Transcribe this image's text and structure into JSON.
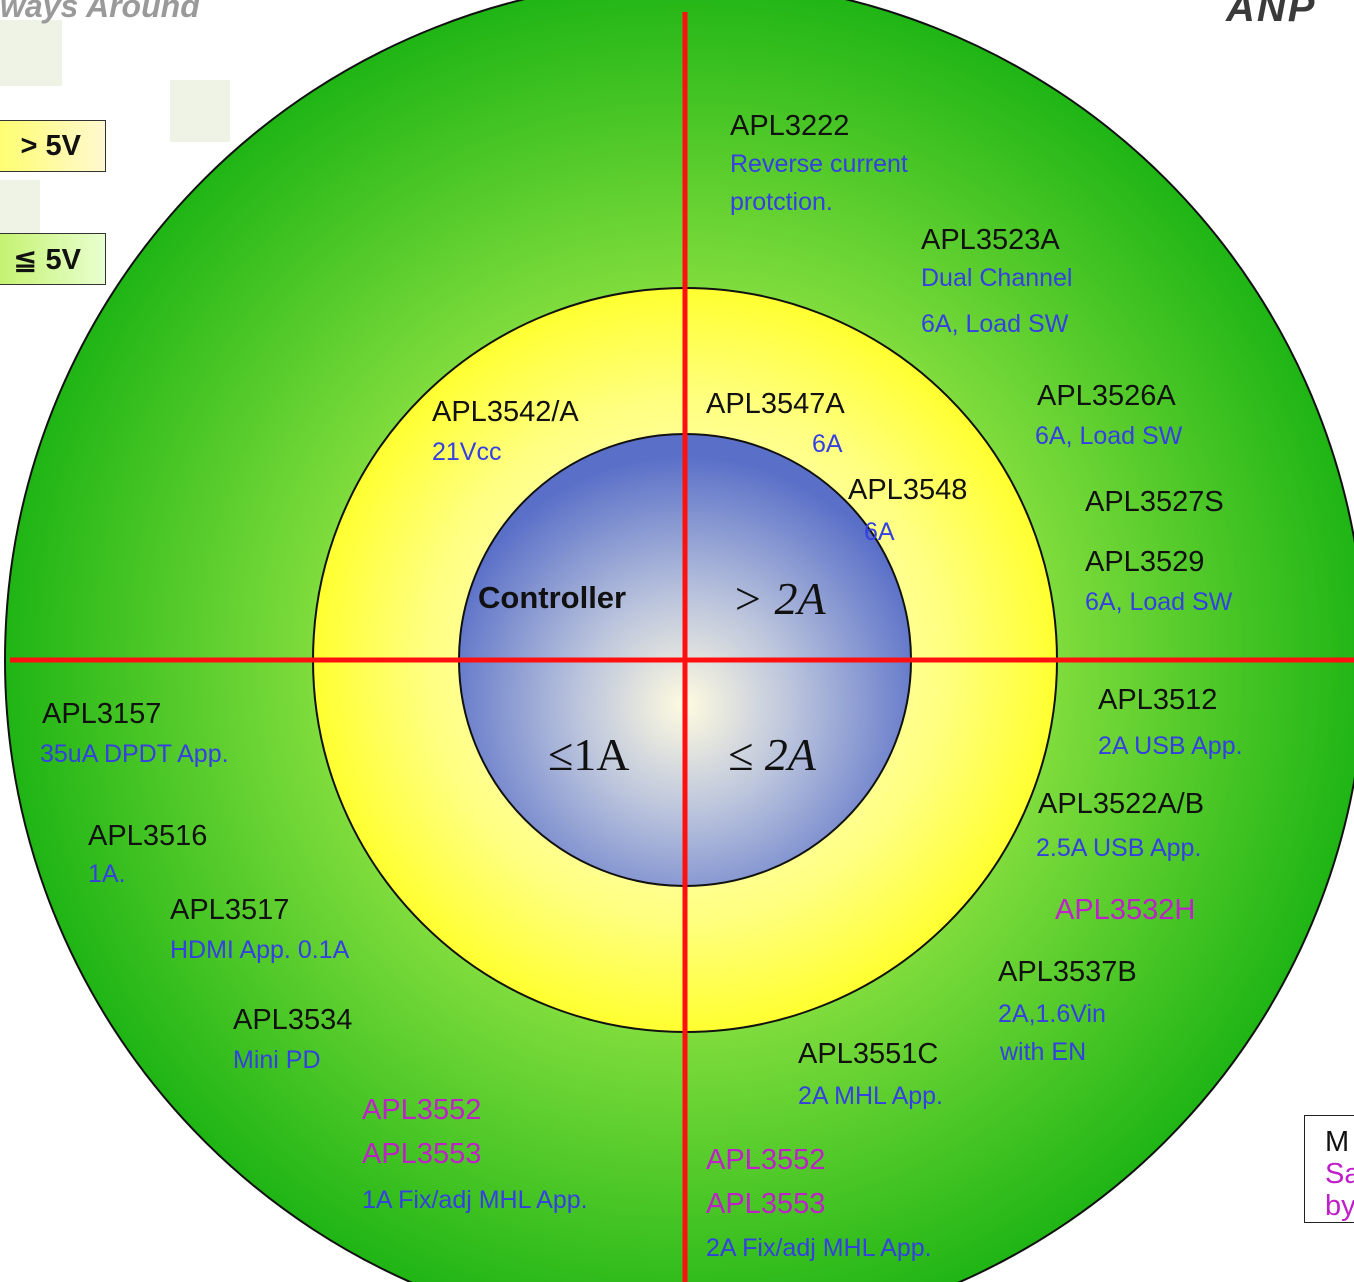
{
  "header": {
    "tagline_fragment": "ways Around",
    "logo_fragment": "ANP"
  },
  "voltage_legend": {
    "high": "> 5V",
    "low": "≦ 5V"
  },
  "center": {
    "controller": "Controller",
    "q1": "> 2A",
    "q3": "≤1A",
    "q4": "≤ 2A"
  },
  "products": {
    "apl3222": {
      "name": "APL3222",
      "desc1": "Reverse current",
      "desc2": "protction."
    },
    "apl3523a": {
      "name": "APL3523A",
      "desc1": "Dual Channel",
      "desc2": "6A, Load SW"
    },
    "apl3526a": {
      "name": "APL3526A",
      "desc": "6A, Load SW"
    },
    "apl3527s": {
      "name": "APL3527S"
    },
    "apl3529": {
      "name": "APL3529",
      "desc": "6A, Load SW"
    },
    "apl3542a": {
      "name": "APL3542/A",
      "desc": "21Vcc"
    },
    "apl3547a": {
      "name": "APL3547A",
      "desc": "6A"
    },
    "apl3548": {
      "name": "APL3548",
      "desc": "6A"
    },
    "apl3157": {
      "name": "APL3157",
      "desc": "35uA DPDT App."
    },
    "apl3516": {
      "name": "APL3516",
      "desc": "1A."
    },
    "apl3517": {
      "name": "APL3517",
      "desc": "HDMI App. 0.1A"
    },
    "apl3534": {
      "name": "APL3534",
      "desc": "Mini PD"
    },
    "left_552_553": {
      "name1": "APL3552",
      "name2": "APL3553",
      "desc": "1A  Fix/adj MHL App."
    },
    "apl3512": {
      "name": "APL3512",
      "desc": "2A USB App."
    },
    "apl3522ab": {
      "name": "APL3522A/B",
      "desc": "2.5A USB App."
    },
    "apl3532h": {
      "name": "APL3532H"
    },
    "apl3537b": {
      "name": "APL3537B",
      "desc1": "2A,1.6Vin",
      "desc2": "with EN"
    },
    "apl3551c": {
      "name": "APL3551C",
      "desc": "2A  MHL App."
    },
    "right_552_553": {
      "name1": "APL3552",
      "name2": "APL3553",
      "desc": "2A  Fix/adj MHL App."
    }
  },
  "note_box": {
    "line1": "M",
    "line2": "Sa",
    "line3": "by"
  },
  "colors": {
    "outer_ring": "#2fbf1a",
    "middle_ring": "#ffff40",
    "inner_core": "#5a70c8",
    "divider": "#ff1010",
    "part_number": "#111111",
    "description": "#3440e0",
    "highlight": "#c020c8"
  }
}
